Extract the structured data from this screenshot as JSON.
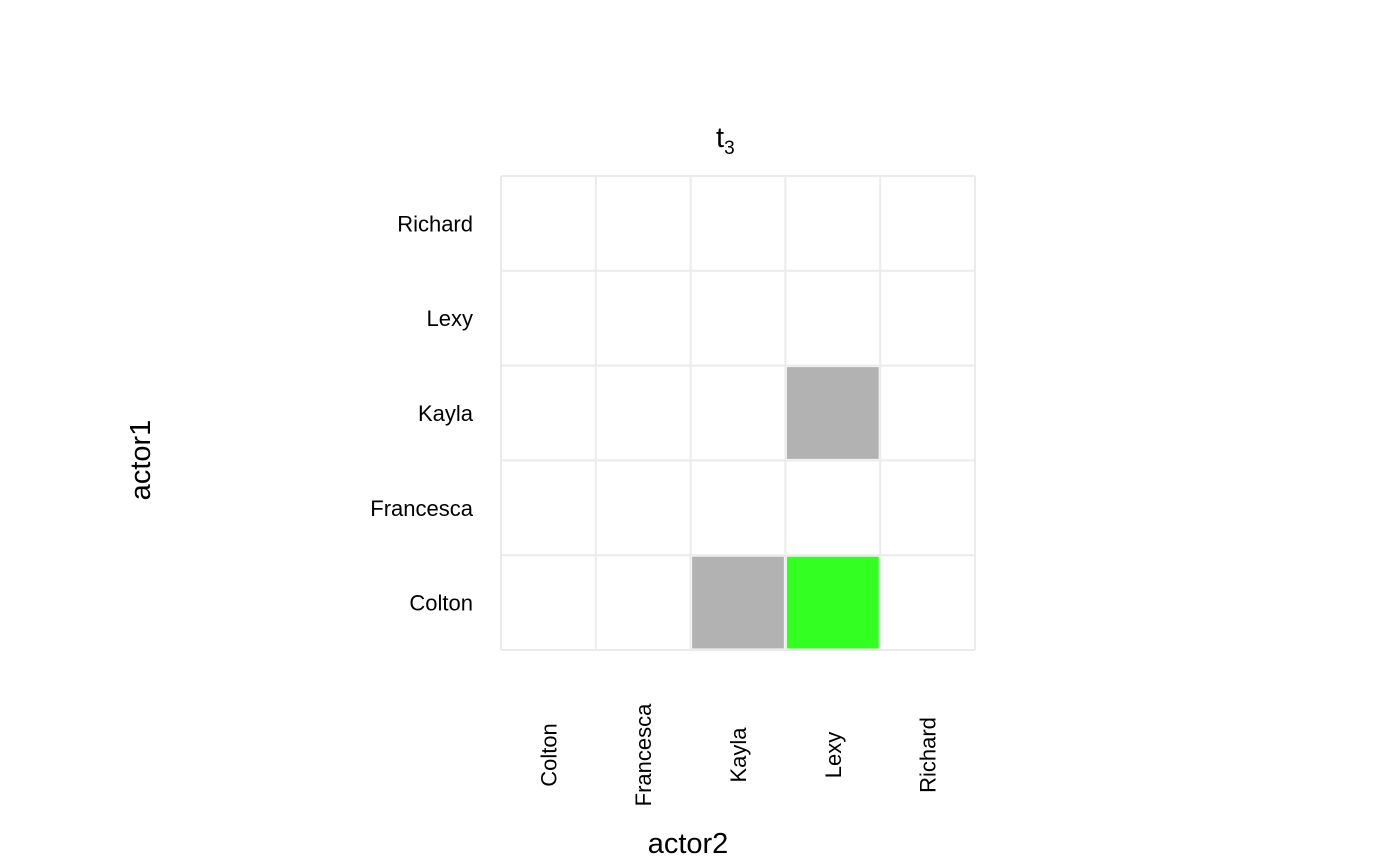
{
  "chart_data": {
    "type": "heatmap",
    "title": "t",
    "title_subscript": "3",
    "xlabel": "actor2",
    "ylabel": "actor1",
    "x_categories": [
      "Colton",
      "Francesca",
      "Kayla",
      "Lexy",
      "Richard"
    ],
    "y_categories": [
      "Colton",
      "Francesca",
      "Kayla",
      "Lexy",
      "Richard"
    ],
    "grid": true,
    "legend": "none",
    "cells": [
      {
        "x": "Lexy",
        "y": "Kayla",
        "color": "#b2b2b2"
      },
      {
        "x": "Kayla",
        "y": "Colton",
        "color": "#b2b2b2"
      },
      {
        "x": "Lexy",
        "y": "Colton",
        "color": "#33ff22"
      }
    ]
  },
  "colors": {
    "grid": "#ebebeb",
    "gray_fill": "#b2b2b2",
    "green_fill": "#33ff22"
  }
}
